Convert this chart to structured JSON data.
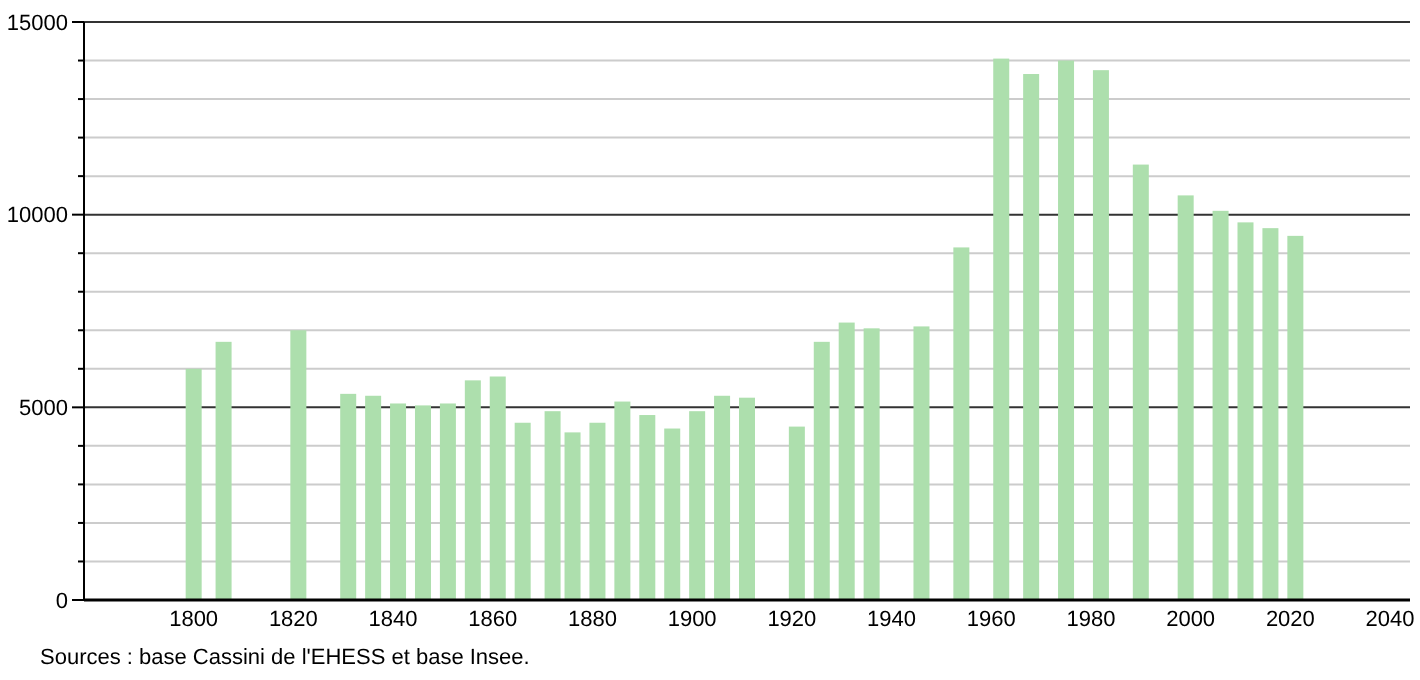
{
  "chart_data": {
    "type": "bar",
    "x": [
      1800,
      1806,
      1821,
      1831,
      1836,
      1841,
      1846,
      1851,
      1856,
      1861,
      1866,
      1872,
      1876,
      1881,
      1886,
      1891,
      1896,
      1901,
      1906,
      1911,
      1921,
      1926,
      1931,
      1936,
      1946,
      1954,
      1962,
      1968,
      1975,
      1982,
      1990,
      1999,
      2006,
      2011,
      2016,
      2021
    ],
    "values": [
      6000,
      6700,
      7000,
      5350,
      5300,
      5100,
      5050,
      5100,
      5700,
      5800,
      4600,
      4900,
      4350,
      4600,
      5150,
      4800,
      4450,
      4900,
      5300,
      5250,
      4500,
      6700,
      7200,
      7050,
      7100,
      9150,
      14050,
      13650,
      14000,
      13750,
      11300,
      10500,
      10100,
      9800,
      9650,
      9450
    ],
    "color": "#addfad",
    "xlim": [
      1778,
      2044
    ],
    "xticks": [
      1800,
      1820,
      1840,
      1860,
      1880,
      1900,
      1920,
      1940,
      1960,
      1980,
      2000,
      2020,
      2040
    ],
    "ylim": [
      0,
      15000
    ],
    "yticks": [
      0,
      {
        "value": 1000,
        "label": null
      },
      {
        "value": 2000,
        "label": null
      },
      {
        "value": 3000,
        "label": null
      },
      {
        "value": 4000,
        "label": null
      },
      5000,
      {
        "value": 6000,
        "label": null
      },
      {
        "value": 7000,
        "label": null
      },
      {
        "value": 8000,
        "label": null
      },
      {
        "value": 9000,
        "label": null
      },
      10000,
      {
        "value": 11000,
        "label": null
      },
      {
        "value": 12000,
        "label": null
      },
      {
        "value": 13000,
        "label": null
      },
      {
        "value": 14000,
        "label": null
      },
      15000
    ],
    "grid": "y",
    "annotations": [
      "Sources : base Cassini de l'EHESS et base Insee."
    ]
  }
}
